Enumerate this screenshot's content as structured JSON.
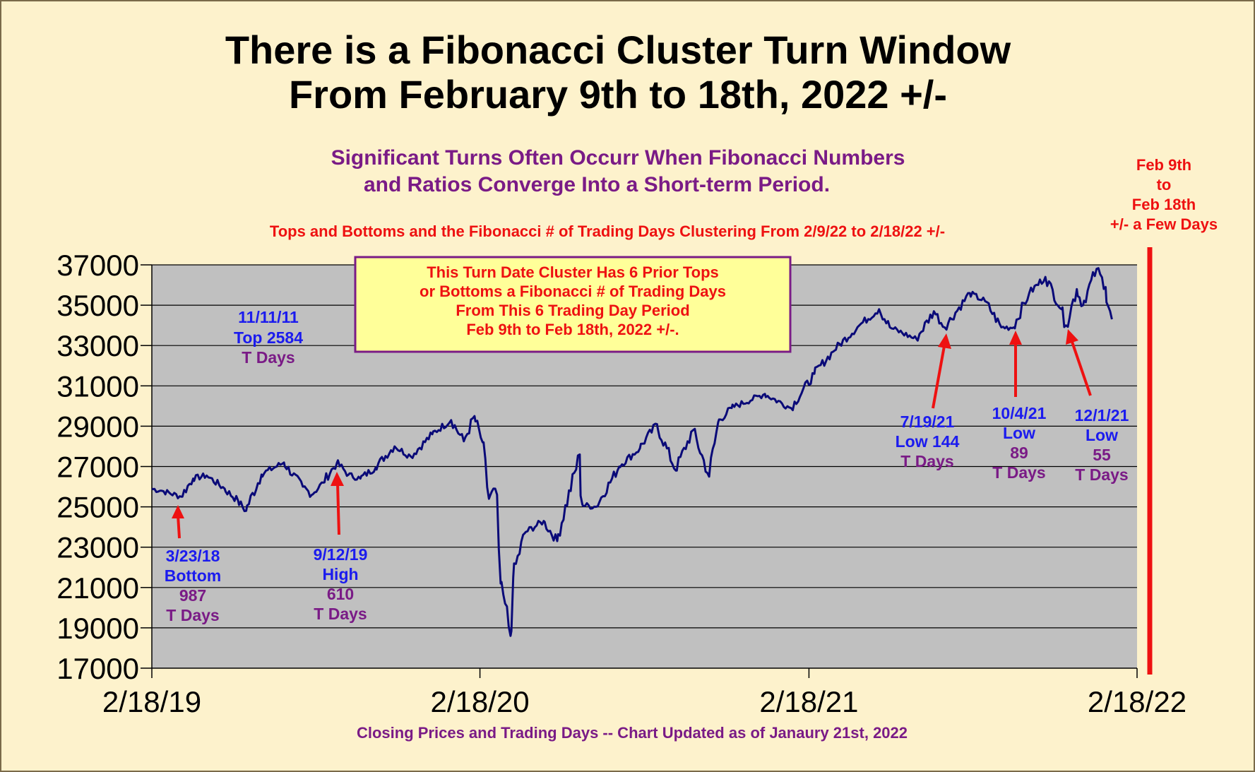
{
  "title": {
    "line1": "There is a Fibonacci Cluster Turn Window",
    "line2": "From February 9th to 18th, 2022 +/-"
  },
  "subtitle": {
    "line1": "Significant Turns Often Occurr When Fibonacci Numbers",
    "line2": "and Ratios Converge Into a Short-term Period."
  },
  "subnote": "Tops and Bottoms and the Fibonacci # of Trading Days Clustering From 2/9/22 to 2/18/22 +/-",
  "info_box": {
    "lines": [
      "This Turn Date Cluster Has 6 Prior Tops",
      "or Bottoms a Fibonacci # of Trading Days",
      "From This 6 Trading Day Period",
      "Feb 9th to Feb 18th, 2022 +/-."
    ]
  },
  "window_label": {
    "lines": [
      "Feb 9th",
      "to",
      "Feb 18th",
      "+/- a Few Days"
    ]
  },
  "footer": "Closing Prices and Trading Days -- Chart Updated as of Janaury 21st, 2022",
  "annotations": [
    {
      "id": "top-2011",
      "lines": [
        {
          "text": "11/11/11",
          "color": "blue"
        },
        {
          "text": "Top 2584",
          "color": "blue"
        },
        {
          "text": "T Days",
          "color": "purple"
        }
      ],
      "arrow": false
    },
    {
      "id": "bottom-2018",
      "lines": [
        {
          "text": "3/23/18",
          "color": "blue"
        },
        {
          "text": "Bottom",
          "color": "blue"
        },
        {
          "text": "987",
          "color": "purple"
        },
        {
          "text": "T Days",
          "color": "purple"
        }
      ],
      "arrow": true
    },
    {
      "id": "high-2019",
      "lines": [
        {
          "text": "9/12/19",
          "color": "blue"
        },
        {
          "text": "High",
          "color": "blue"
        },
        {
          "text": "610",
          "color": "purple"
        },
        {
          "text": "T Days",
          "color": "purple"
        }
      ],
      "arrow": true
    },
    {
      "id": "low-2021-07",
      "lines": [
        {
          "text": "7/19/21",
          "color": "blue"
        },
        {
          "text": "Low 144",
          "color": "blue"
        },
        {
          "text": "T Days",
          "color": "purple"
        }
      ],
      "arrow": true
    },
    {
      "id": "low-2021-10",
      "lines": [
        {
          "text": "10/4/21",
          "color": "blue"
        },
        {
          "text": "Low",
          "color": "blue"
        },
        {
          "text": "89",
          "color": "purple"
        },
        {
          "text": "T Days",
          "color": "purple"
        }
      ],
      "arrow": true
    },
    {
      "id": "low-2021-12",
      "lines": [
        {
          "text": "12/1/21",
          "color": "blue"
        },
        {
          "text": "Low",
          "color": "blue"
        },
        {
          "text": "55",
          "color": "purple"
        },
        {
          "text": "T Days",
          "color": "purple"
        }
      ],
      "arrow": true
    }
  ],
  "colors": {
    "background": "#fdf2cc",
    "plot_area": "#c0c0c0",
    "line": "#0a0a78",
    "arrow": "#ee1111",
    "window_bar": "#ee1111",
    "info_box_fill": "#ffff99",
    "info_box_border": "#7a1b86",
    "blue_text": "#1b1bee",
    "purple_text": "#7a1b86"
  },
  "chart_data": {
    "type": "line",
    "series": [
      {
        "x": [
          "2019-02-18",
          "2019-03-01",
          "2019-03-23",
          "2019-04-05",
          "2019-04-20",
          "2019-05-10",
          "2019-05-25",
          "2019-06-03",
          "2019-06-20",
          "2019-07-15",
          "2019-08-05",
          "2019-08-15",
          "2019-08-28",
          "2019-09-12",
          "2019-09-25",
          "2019-10-08",
          "2019-10-25",
          "2019-11-15",
          "2019-12-03",
          "2019-12-27",
          "2020-01-17",
          "2020-01-31",
          "2020-02-12",
          "2020-02-21",
          "2020-02-28",
          "2020-03-06",
          "2020-03-12",
          "2020-03-17",
          "2020-03-23",
          "2020-03-26",
          "2020-04-08",
          "2020-04-29",
          "2020-05-14",
          "2020-06-08",
          "2020-06-11",
          "2020-06-26",
          "2020-07-22",
          "2020-08-14",
          "2020-09-02",
          "2020-09-23",
          "2020-10-12",
          "2020-10-30",
          "2020-11-09",
          "2020-11-24",
          "2020-12-31",
          "2021-01-29",
          "2021-02-24",
          "2021-03-17",
          "2021-04-15",
          "2021-05-07",
          "2021-05-19",
          "2021-06-18",
          "2021-07-07",
          "2021-07-19",
          "2021-08-16",
          "2021-09-02",
          "2021-09-20",
          "2021-10-04",
          "2021-10-21",
          "2021-11-08",
          "2021-11-26",
          "2021-12-01",
          "2021-12-13",
          "2021-12-20",
          "2022-01-04",
          "2022-01-14",
          "2022-01-21"
        ],
        "values": [
          25900,
          25800,
          25500,
          26400,
          26550,
          25900,
          25300,
          24800,
          26600,
          27200,
          26000,
          25600,
          26200,
          27200,
          26600,
          26400,
          26950,
          28000,
          27500,
          28600,
          29300,
          28250,
          29500,
          28200,
          25400,
          25900,
          21200,
          20200,
          18600,
          21500,
          23700,
          24300,
          23300,
          27600,
          25100,
          25000,
          27000,
          27900,
          29100,
          26800,
          28800,
          26500,
          29200,
          29900,
          30600,
          29900,
          31600,
          32700,
          34000,
          34800,
          33900,
          33300,
          34700,
          33900,
          35600,
          35200,
          33900,
          33900,
          35600,
          36400,
          34800,
          34000,
          35800,
          35000,
          36800,
          35900,
          34300
        ]
      }
    ],
    "x_ticks": [
      "2/18/19",
      "2/18/20",
      "2/18/21",
      "2/18/22"
    ],
    "y_ticks": [
      17000,
      19000,
      21000,
      23000,
      25000,
      27000,
      29000,
      31000,
      33000,
      35000,
      37000
    ],
    "xlim": [
      "2019-02-18",
      "2022-02-18"
    ],
    "ylim": [
      17000,
      37000
    ],
    "grid": true,
    "turn_window": [
      "2022-02-09",
      "2022-02-18"
    ],
    "annotation_points": [
      {
        "id": "bottom-2018",
        "x": "2019-03-23",
        "y": 25500
      },
      {
        "id": "high-2019",
        "x": "2019-09-12",
        "y": 27200
      },
      {
        "id": "low-2021-07",
        "x": "2021-07-19",
        "y": 33900
      },
      {
        "id": "low-2021-10",
        "x": "2021-10-04",
        "y": 33900
      },
      {
        "id": "low-2021-12",
        "x": "2021-12-01",
        "y": 34000
      }
    ]
  }
}
